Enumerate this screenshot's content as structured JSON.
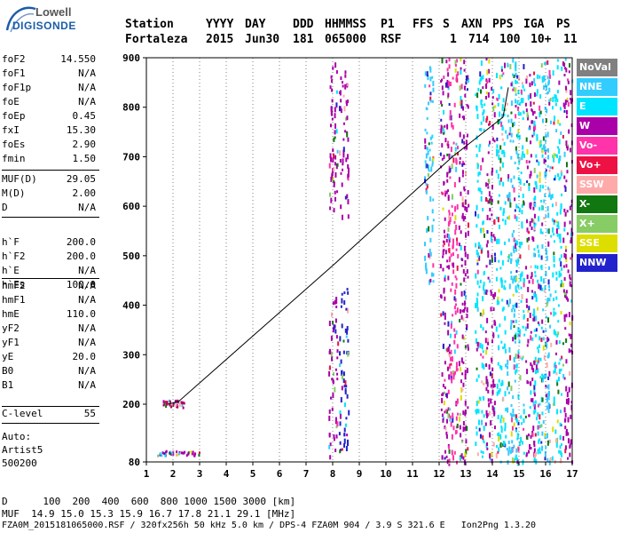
{
  "logo": {
    "top": "Lowell",
    "bottom": "DIGISONDE"
  },
  "header": {
    "labels": [
      "Station",
      "YYYY",
      "DAY",
      "DDD",
      "HHMMSS",
      "P1",
      "FFS",
      "S",
      "AXN",
      "PPS",
      "IGA",
      "PS"
    ],
    "values": [
      "Fortaleza",
      "2015",
      "Jun30",
      "181",
      "065000",
      "RSF",
      "",
      "1",
      "714",
      "100",
      "10+",
      "11"
    ]
  },
  "params_1": [
    {
      "label": "foF2",
      "value": "14.550"
    },
    {
      "label": "foF1",
      "value": "N/A"
    },
    {
      "label": "foF1p",
      "value": "N/A"
    },
    {
      "label": "foE",
      "value": "N/A"
    },
    {
      "label": "foEp",
      "value": "0.45"
    },
    {
      "label": "fxI",
      "value": "15.30"
    },
    {
      "label": "foEs",
      "value": "2.90"
    },
    {
      "label": "fmin",
      "value": "1.50"
    }
  ],
  "params_2": [
    {
      "label": "MUF(D)",
      "value": "29.05"
    },
    {
      "label": "M(D)",
      "value": "2.00"
    },
    {
      "label": "D",
      "value": "N/A"
    }
  ],
  "params_3": [
    {
      "label": "h`F",
      "value": "200.0"
    },
    {
      "label": "h`F2",
      "value": "200.0"
    },
    {
      "label": "h`E",
      "value": "N/A"
    },
    {
      "label": "h`Es",
      "value": "100.0"
    }
  ],
  "params_4": [
    {
      "label": "hmF2",
      "value": "N/A"
    },
    {
      "label": "hmF1",
      "value": "N/A"
    },
    {
      "label": "hmE",
      "value": "110.0"
    },
    {
      "label": "yF2",
      "value": "N/A"
    },
    {
      "label": "yF1",
      "value": "N/A"
    },
    {
      "label": "yE",
      "value": "20.0"
    },
    {
      "label": "B0",
      "value": "N/A"
    },
    {
      "label": "B1",
      "value": "N/A"
    }
  ],
  "c_level": {
    "label": "C-level",
    "value": "55"
  },
  "auto": {
    "line1": "Auto:",
    "line2": "Artist5",
    "line3": "500200"
  },
  "footer": {
    "d_line": "D      100  200  400  600  800 1000 1500 3000 [km]",
    "muf_line": "MUF  14.9 15.0 15.3 15.9 16.7 17.8 21.1 29.1 [MHz]",
    "file_line": "FZA0M_2015181065000.RSF / 320fx256h 50 kHz 5.0 km / DPS-4 FZA0M 904 / 3.9 S 321.6 E   Ion2Png 1.3.20"
  },
  "legend": [
    {
      "label": "NoVal",
      "color": "#808080"
    },
    {
      "label": "NNE",
      "color": "#33ccff"
    },
    {
      "label": "E",
      "color": "#00e5ff"
    },
    {
      "label": "W",
      "color": "#aa00aa"
    },
    {
      "label": "Vo-",
      "color": "#ff33aa"
    },
    {
      "label": "Vo+",
      "color": "#ee1144"
    },
    {
      "label": "SSW",
      "color": "#ffaaaa"
    },
    {
      "label": "X-",
      "color": "#117711"
    },
    {
      "label": "X+",
      "color": "#88cc66"
    },
    {
      "label": "SSE",
      "color": "#dddd00"
    },
    {
      "label": "NNW",
      "color": "#2222cc"
    }
  ],
  "chart_data": {
    "type": "scatter",
    "xlim": [
      1,
      17
    ],
    "ylim": [
      80,
      900
    ],
    "x_ticks": [
      "1",
      "2",
      "3",
      "4",
      "5",
      "6",
      "7",
      "8",
      "9",
      "10",
      "11",
      "12",
      "13",
      "14",
      "15",
      "16",
      "17"
    ],
    "y_ticks": [
      "80",
      "200",
      "300",
      "400",
      "500",
      "600",
      "700",
      "800",
      "900"
    ],
    "trace": {
      "x": [
        1.8,
        2.2,
        8.0,
        12.5,
        14.4,
        14.6
      ],
      "y": [
        200,
        205,
        480,
        700,
        780,
        840
      ]
    },
    "echo_columns": [
      {
        "x": 8.0,
        "y0": 590,
        "y1": 900,
        "color": "#aa00aa"
      },
      {
        "x": 8.0,
        "y0": 90,
        "y1": 420,
        "color": "#aa00aa"
      },
      {
        "x": 8.4,
        "y0": 580,
        "y1": 880,
        "color": "#aa00aa"
      },
      {
        "x": 8.4,
        "y0": 100,
        "y1": 450,
        "color": "#2222cc"
      },
      {
        "x": 11.6,
        "y0": 450,
        "y1": 900,
        "color": "#33ccff"
      },
      {
        "x": 12.2,
        "y0": 80,
        "y1": 900,
        "color": "#aa00aa"
      },
      {
        "x": 12.5,
        "y0": 80,
        "y1": 900,
        "color": "#ff33aa"
      },
      {
        "x": 12.9,
        "y0": 80,
        "y1": 900,
        "color": "#aa00aa"
      },
      {
        "x": 13.5,
        "y0": 80,
        "y1": 900,
        "color": "#00e5ff"
      },
      {
        "x": 13.9,
        "y0": 80,
        "y1": 900,
        "color": "#aa00aa"
      },
      {
        "x": 14.3,
        "y0": 80,
        "y1": 900,
        "color": "#00e5ff"
      },
      {
        "x": 14.7,
        "y0": 80,
        "y1": 900,
        "color": "#33ccff"
      },
      {
        "x": 15.0,
        "y0": 80,
        "y1": 900,
        "color": "#00e5ff"
      },
      {
        "x": 15.4,
        "y0": 80,
        "y1": 900,
        "color": "#aa00aa"
      },
      {
        "x": 15.7,
        "y0": 80,
        "y1": 900,
        "color": "#00e5ff"
      },
      {
        "x": 16.0,
        "y0": 80,
        "y1": 900,
        "color": "#33ccff"
      },
      {
        "x": 16.4,
        "y0": 80,
        "y1": 900,
        "color": "#00e5ff"
      },
      {
        "x": 16.8,
        "y0": 80,
        "y1": 900,
        "color": "#aa00aa"
      }
    ],
    "echo_clusters": [
      {
        "x0": 1.6,
        "x1": 2.4,
        "y0": 195,
        "y1": 210,
        "color": "#aa0066"
      },
      {
        "x0": 1.4,
        "x1": 3.0,
        "y0": 95,
        "y1": 105,
        "color": "#aa00aa"
      }
    ]
  }
}
